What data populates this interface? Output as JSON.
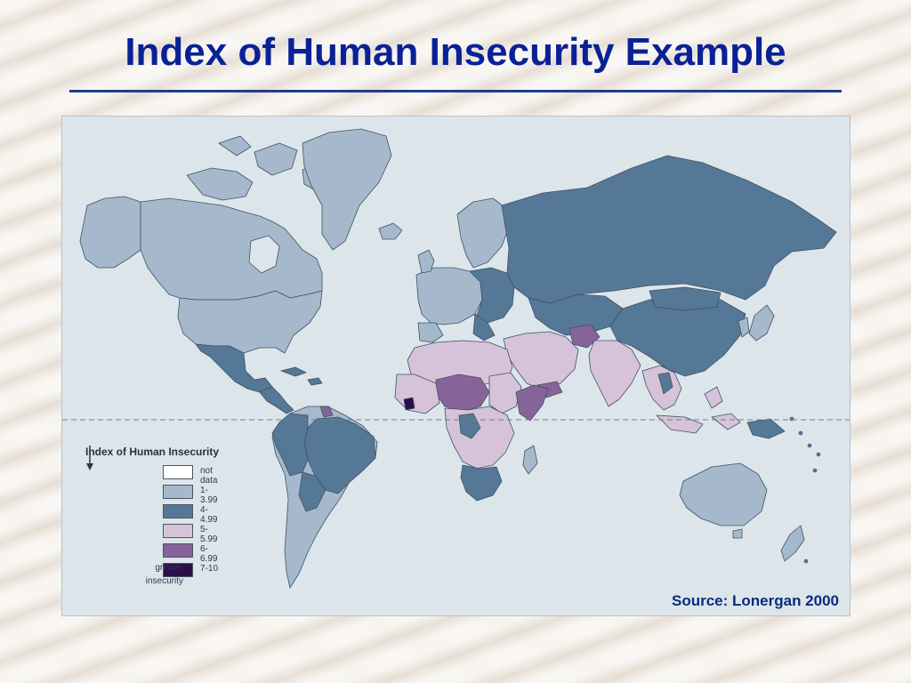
{
  "slide": {
    "title": "Index of Human Insecurity Example",
    "source": "Source: Lonergan 2000"
  },
  "map": {
    "legend": {
      "title": "Index of Human Insecurity",
      "items": [
        {
          "label": "not data",
          "color": "#ffffff"
        },
        {
          "label": "1-3.99",
          "color": "#a6b9cc"
        },
        {
          "label": "4-4.99",
          "color": "#557896"
        },
        {
          "label": "5-5.99",
          "color": "#d6c3d9"
        },
        {
          "label": "6-6.99",
          "color": "#86649a"
        },
        {
          "label": "7-10",
          "color": "#2a0f4a"
        }
      ],
      "caption_line1": "greater",
      "caption_line2": "insecurity"
    },
    "colors": {
      "ocean": "#dce5ea",
      "border": "#3e5266",
      "equator": "#6f7f8c"
    }
  }
}
